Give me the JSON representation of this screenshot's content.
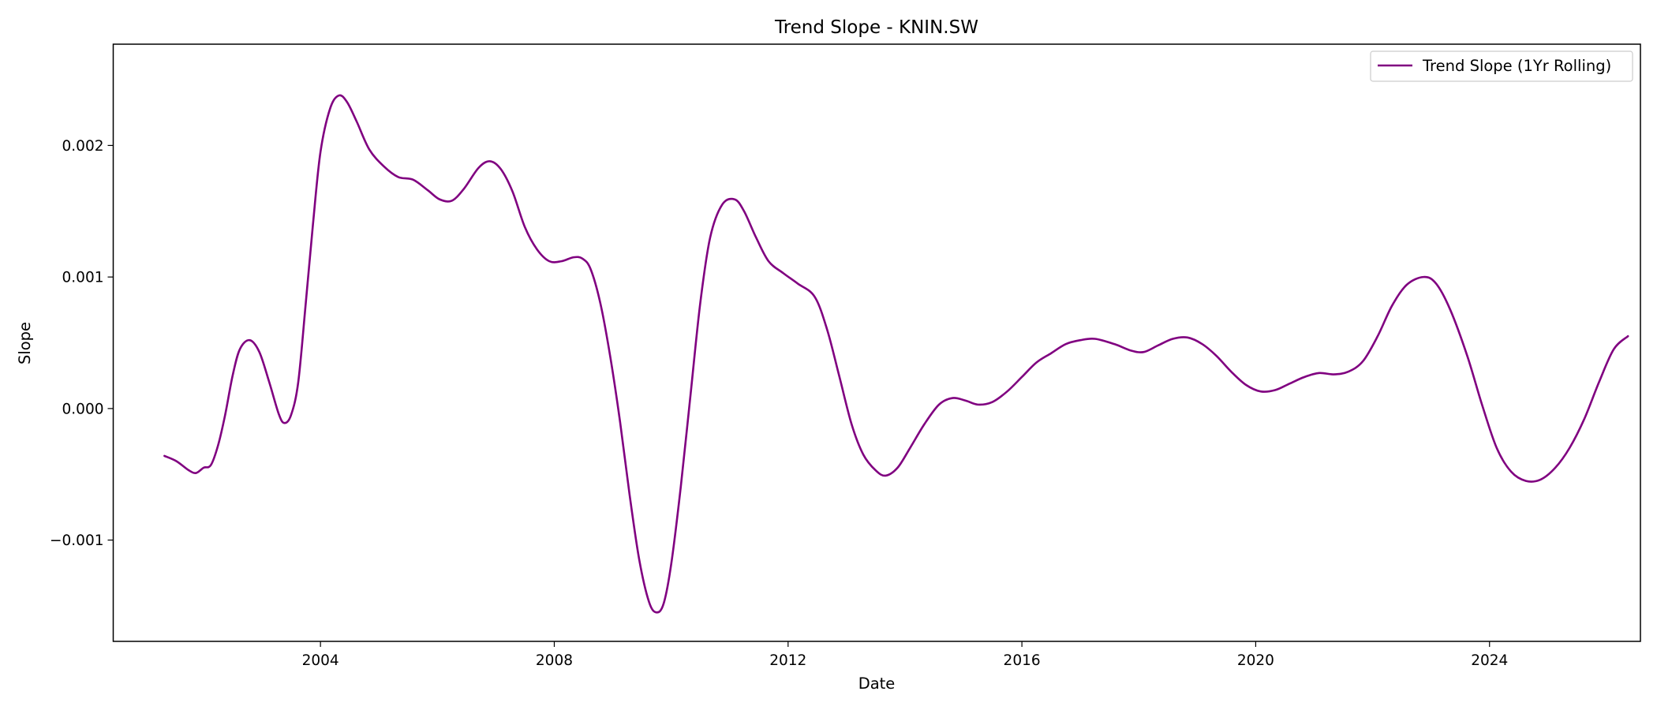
{
  "chart_data": {
    "type": "line",
    "title": "Trend Slope - KNIN.SW",
    "xlabel": "Date",
    "ylabel": "Slope",
    "x_axis_type": "date",
    "xlim": [
      "2000-06-15",
      "2026-08-01"
    ],
    "ylim": [
      -0.00177,
      0.00277
    ],
    "x_ticks": [
      {
        "value": "2004-01-01",
        "label": "2004"
      },
      {
        "value": "2008-01-01",
        "label": "2008"
      },
      {
        "value": "2012-01-01",
        "label": "2012"
      },
      {
        "value": "2016-01-01",
        "label": "2016"
      },
      {
        "value": "2020-01-01",
        "label": "2020"
      },
      {
        "value": "2024-01-01",
        "label": "2024"
      }
    ],
    "y_ticks": [
      {
        "value": -0.001,
        "label": "−0.001"
      },
      {
        "value": 0.0,
        "label": "0.000"
      },
      {
        "value": 0.001,
        "label": "0.001"
      },
      {
        "value": 0.002,
        "label": "0.002"
      }
    ],
    "grid": false,
    "legend_position": "top-right",
    "series": [
      {
        "name": "Trend Slope (1Yr Rolling)",
        "color": "#800080",
        "points": [
          [
            "2001-05-01",
            -0.00036
          ],
          [
            "2001-07-15",
            -0.0004
          ],
          [
            "2001-10-01",
            -0.00047
          ],
          [
            "2001-11-15",
            -0.00049
          ],
          [
            "2002-01-01",
            -0.00045
          ],
          [
            "2002-02-15",
            -0.00043
          ],
          [
            "2002-04-01",
            -0.00028
          ],
          [
            "2002-05-15",
            -5e-05
          ],
          [
            "2002-07-01",
            0.00025
          ],
          [
            "2002-08-15",
            0.00045
          ],
          [
            "2002-10-15",
            0.00052
          ],
          [
            "2002-12-15",
            0.00043
          ],
          [
            "2003-02-15",
            0.0002
          ],
          [
            "2003-04-15",
            -4e-05
          ],
          [
            "2003-05-20",
            -0.00011
          ],
          [
            "2003-07-01",
            -5e-05
          ],
          [
            "2003-08-15",
            0.0002
          ],
          [
            "2003-10-01",
            0.0008
          ],
          [
            "2003-11-15",
            0.0014
          ],
          [
            "2004-01-01",
            0.00195
          ],
          [
            "2004-03-01",
            0.00228
          ],
          [
            "2004-04-25",
            0.00238
          ],
          [
            "2004-06-15",
            0.00233
          ],
          [
            "2004-08-15",
            0.00218
          ],
          [
            "2004-11-01",
            0.00197
          ],
          [
            "2005-02-01",
            0.00184
          ],
          [
            "2005-05-01",
            0.00176
          ],
          [
            "2005-08-01",
            0.00174
          ],
          [
            "2005-11-01",
            0.00166
          ],
          [
            "2006-01-15",
            0.00159
          ],
          [
            "2006-04-01",
            0.00158
          ],
          [
            "2006-06-15",
            0.00167
          ],
          [
            "2006-09-15",
            0.00183
          ],
          [
            "2006-11-25",
            0.00188
          ],
          [
            "2007-02-01",
            0.00182
          ],
          [
            "2007-04-15",
            0.00165
          ],
          [
            "2007-07-01",
            0.00138
          ],
          [
            "2007-09-15",
            0.00121
          ],
          [
            "2007-12-01",
            0.00112
          ],
          [
            "2008-02-15",
            0.00112
          ],
          [
            "2008-05-01",
            0.00115
          ],
          [
            "2008-06-25",
            0.00114
          ],
          [
            "2008-08-15",
            0.00106
          ],
          [
            "2008-10-15",
            0.0008
          ],
          [
            "2008-12-15",
            0.0004
          ],
          [
            "2009-02-15",
            -0.0001
          ],
          [
            "2009-04-15",
            -0.00065
          ],
          [
            "2009-06-15",
            -0.00115
          ],
          [
            "2009-08-15",
            -0.00147
          ],
          [
            "2009-10-01",
            -0.00155
          ],
          [
            "2009-11-15",
            -0.00148
          ],
          [
            "2010-01-01",
            -0.00118
          ],
          [
            "2010-03-01",
            -0.0006
          ],
          [
            "2010-05-01",
            0.0001
          ],
          [
            "2010-07-01",
            0.0008
          ],
          [
            "2010-09-01",
            0.0013
          ],
          [
            "2010-11-15",
            0.00155
          ],
          [
            "2011-02-01",
            0.00159
          ],
          [
            "2011-04-01",
            0.0015
          ],
          [
            "2011-06-15",
            0.0013
          ],
          [
            "2011-09-01",
            0.00112
          ],
          [
            "2011-12-01",
            0.00103
          ],
          [
            "2012-03-01",
            0.00095
          ],
          [
            "2012-06-15",
            0.00085
          ],
          [
            "2012-09-01",
            0.0006
          ],
          [
            "2012-11-15",
            0.00025
          ],
          [
            "2013-02-01",
            -0.00012
          ],
          [
            "2013-04-15",
            -0.00035
          ],
          [
            "2013-07-01",
            -0.00047
          ],
          [
            "2013-09-01",
            -0.00051
          ],
          [
            "2013-11-15",
            -0.00045
          ],
          [
            "2014-02-01",
            -0.0003
          ],
          [
            "2014-05-01",
            -0.00012
          ],
          [
            "2014-08-01",
            3e-05
          ],
          [
            "2014-10-25",
            8e-05
          ],
          [
            "2015-01-15",
            6e-05
          ],
          [
            "2015-04-01",
            3e-05
          ],
          [
            "2015-07-01",
            5e-05
          ],
          [
            "2015-10-01",
            0.00013
          ],
          [
            "2016-01-01",
            0.00024
          ],
          [
            "2016-04-01",
            0.00035
          ],
          [
            "2016-07-01",
            0.00042
          ],
          [
            "2016-10-01",
            0.00049
          ],
          [
            "2017-01-01",
            0.00052
          ],
          [
            "2017-04-01",
            0.00053
          ],
          [
            "2017-08-01",
            0.00049
          ],
          [
            "2017-11-15",
            0.00044
          ],
          [
            "2018-02-01",
            0.00043
          ],
          [
            "2018-05-01",
            0.00048
          ],
          [
            "2018-08-01",
            0.00053
          ],
          [
            "2018-11-01",
            0.00054
          ],
          [
            "2019-02-01",
            0.00049
          ],
          [
            "2019-05-01",
            0.0004
          ],
          [
            "2019-08-01",
            0.00028
          ],
          [
            "2019-11-01",
            0.00018
          ],
          [
            "2020-02-01",
            0.00013
          ],
          [
            "2020-05-01",
            0.00014
          ],
          [
            "2020-08-01",
            0.00019
          ],
          [
            "2020-11-01",
            0.00024
          ],
          [
            "2021-02-01",
            0.00027
          ],
          [
            "2021-05-01",
            0.00026
          ],
          [
            "2021-08-01",
            0.00028
          ],
          [
            "2021-11-01",
            0.00036
          ],
          [
            "2022-02-01",
            0.00055
          ],
          [
            "2022-05-01",
            0.00078
          ],
          [
            "2022-08-01",
            0.00094
          ],
          [
            "2022-11-15",
            0.001
          ],
          [
            "2023-02-01",
            0.00095
          ],
          [
            "2023-05-01",
            0.00075
          ],
          [
            "2023-08-15",
            0.0004
          ],
          [
            "2023-11-15",
            3e-05
          ],
          [
            "2024-02-15",
            -0.0003
          ],
          [
            "2024-05-15",
            -0.00048
          ],
          [
            "2024-08-15",
            -0.00055
          ],
          [
            "2024-11-15",
            -0.00054
          ],
          [
            "2025-02-15",
            -0.00045
          ],
          [
            "2025-05-15",
            -0.0003
          ],
          [
            "2025-08-15",
            -8e-05
          ],
          [
            "2025-11-15",
            0.0002
          ],
          [
            "2026-02-15",
            0.00045
          ],
          [
            "2026-05-15",
            0.00055
          ]
        ]
      }
    ]
  }
}
